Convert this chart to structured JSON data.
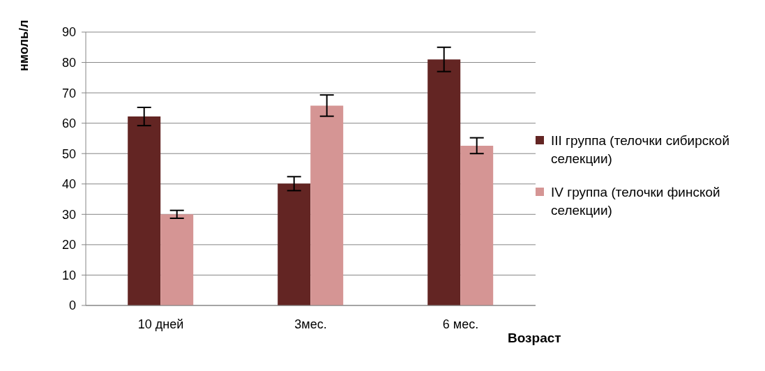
{
  "chart_data": {
    "type": "bar",
    "ylabel": "нмоль/л",
    "xlabel": "Возраст",
    "categories": [
      "10 дней",
      "3мес.",
      "6 мес."
    ],
    "series": [
      {
        "name": "III группа (телочки сибирской селекции)",
        "color": "#632523",
        "values": [
          62.2,
          40.1,
          81.0
        ],
        "errors": [
          3,
          2.3,
          4
        ]
      },
      {
        "name": "IV группа (телочки финской селекции)",
        "color": "#d59594",
        "values": [
          30.0,
          65.8,
          52.6
        ],
        "errors": [
          1.3,
          3.5,
          2.6
        ]
      }
    ],
    "ylim": [
      0,
      90
    ],
    "yticks": [
      0,
      10,
      20,
      30,
      40,
      50,
      60,
      70,
      80,
      90
    ],
    "grid": "y",
    "legend": "right"
  }
}
